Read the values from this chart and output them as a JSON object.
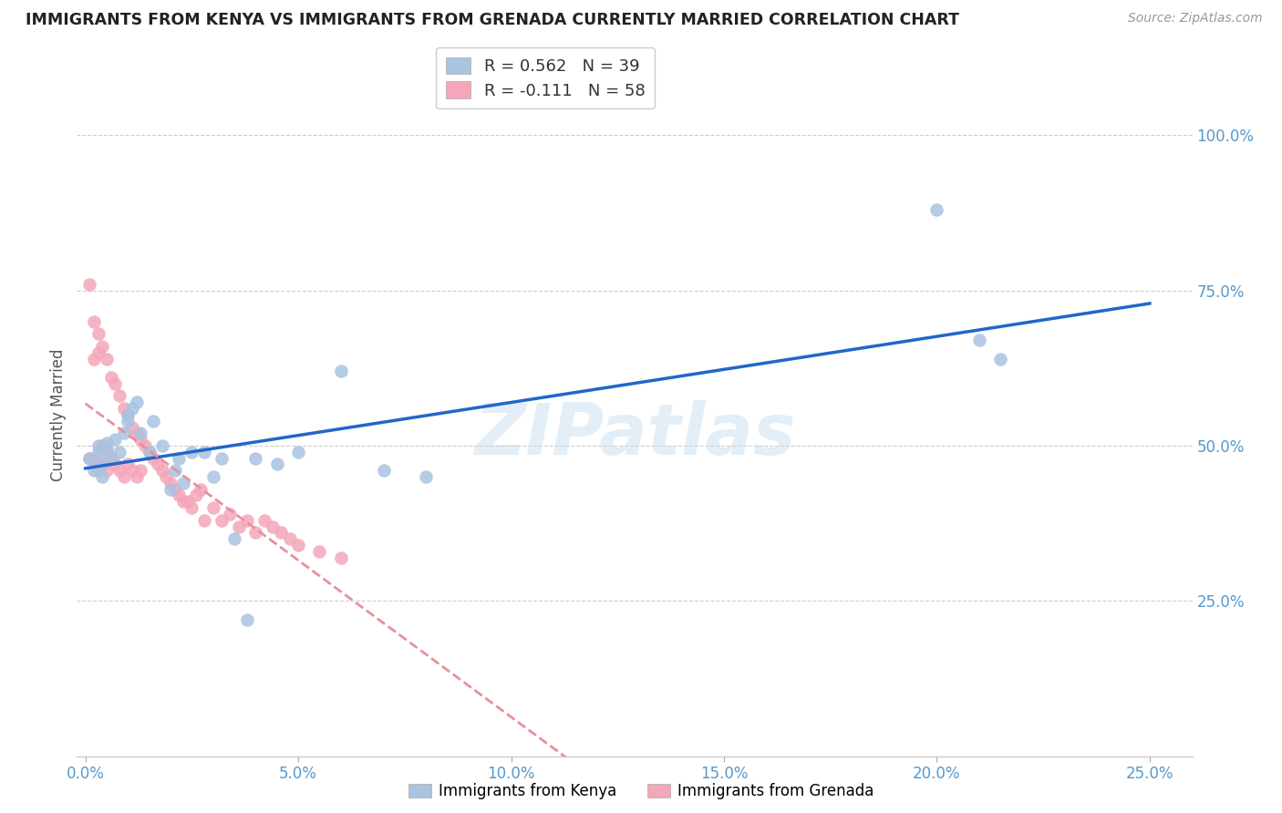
{
  "title": "IMMIGRANTS FROM KENYA VS IMMIGRANTS FROM GRENADA CURRENTLY MARRIED CORRELATION CHART",
  "source": "Source: ZipAtlas.com",
  "ylabel_label": "Currently Married",
  "x_tick_labels": [
    "0.0%",
    "5.0%",
    "10.0%",
    "15.0%",
    "20.0%",
    "25.0%"
  ],
  "x_tick_values": [
    0.0,
    0.05,
    0.1,
    0.15,
    0.2,
    0.25
  ],
  "y_tick_labels": [
    "100.0%",
    "75.0%",
    "50.0%",
    "25.0%"
  ],
  "y_tick_values": [
    1.0,
    0.75,
    0.5,
    0.25
  ],
  "xlim": [
    -0.002,
    0.26
  ],
  "ylim": [
    0.0,
    1.1
  ],
  "kenya_R": 0.562,
  "kenya_N": 39,
  "grenada_R": -0.111,
  "grenada_N": 58,
  "kenya_color": "#a8c4e0",
  "grenada_color": "#f4a7b9",
  "kenya_line_color": "#2266cc",
  "grenada_line_color": "#e8909a",
  "watermark": "ZIPatlas",
  "background_color": "#ffffff",
  "kenya_x": [
    0.001,
    0.002,
    0.003,
    0.003,
    0.004,
    0.004,
    0.005,
    0.005,
    0.006,
    0.007,
    0.008,
    0.009,
    0.01,
    0.01,
    0.011,
    0.012,
    0.013,
    0.015,
    0.016,
    0.018,
    0.02,
    0.021,
    0.022,
    0.023,
    0.025,
    0.028,
    0.03,
    0.032,
    0.035,
    0.038,
    0.04,
    0.045,
    0.05,
    0.06,
    0.07,
    0.08,
    0.2,
    0.21,
    0.215
  ],
  "kenya_y": [
    0.48,
    0.46,
    0.5,
    0.49,
    0.45,
    0.47,
    0.495,
    0.505,
    0.48,
    0.51,
    0.49,
    0.52,
    0.55,
    0.54,
    0.56,
    0.57,
    0.52,
    0.49,
    0.54,
    0.5,
    0.43,
    0.46,
    0.48,
    0.44,
    0.49,
    0.49,
    0.45,
    0.48,
    0.35,
    0.22,
    0.48,
    0.47,
    0.49,
    0.62,
    0.46,
    0.45,
    0.88,
    0.67,
    0.64
  ],
  "grenada_x": [
    0.001,
    0.001,
    0.002,
    0.002,
    0.002,
    0.003,
    0.003,
    0.003,
    0.004,
    0.004,
    0.004,
    0.005,
    0.005,
    0.005,
    0.006,
    0.006,
    0.007,
    0.007,
    0.008,
    0.008,
    0.009,
    0.009,
    0.01,
    0.01,
    0.011,
    0.011,
    0.012,
    0.012,
    0.013,
    0.013,
    0.014,
    0.015,
    0.016,
    0.017,
    0.018,
    0.019,
    0.02,
    0.021,
    0.022,
    0.023,
    0.024,
    0.025,
    0.026,
    0.027,
    0.028,
    0.03,
    0.032,
    0.034,
    0.036,
    0.038,
    0.04,
    0.042,
    0.044,
    0.046,
    0.048,
    0.05,
    0.055,
    0.06
  ],
  "grenada_y": [
    0.76,
    0.48,
    0.7,
    0.64,
    0.48,
    0.68,
    0.65,
    0.46,
    0.66,
    0.5,
    0.47,
    0.64,
    0.49,
    0.46,
    0.61,
    0.48,
    0.6,
    0.47,
    0.58,
    0.46,
    0.56,
    0.45,
    0.55,
    0.47,
    0.53,
    0.46,
    0.52,
    0.45,
    0.51,
    0.46,
    0.5,
    0.49,
    0.48,
    0.47,
    0.46,
    0.45,
    0.44,
    0.43,
    0.42,
    0.41,
    0.41,
    0.4,
    0.42,
    0.43,
    0.38,
    0.4,
    0.38,
    0.39,
    0.37,
    0.38,
    0.36,
    0.38,
    0.37,
    0.36,
    0.35,
    0.34,
    0.33,
    0.32
  ]
}
